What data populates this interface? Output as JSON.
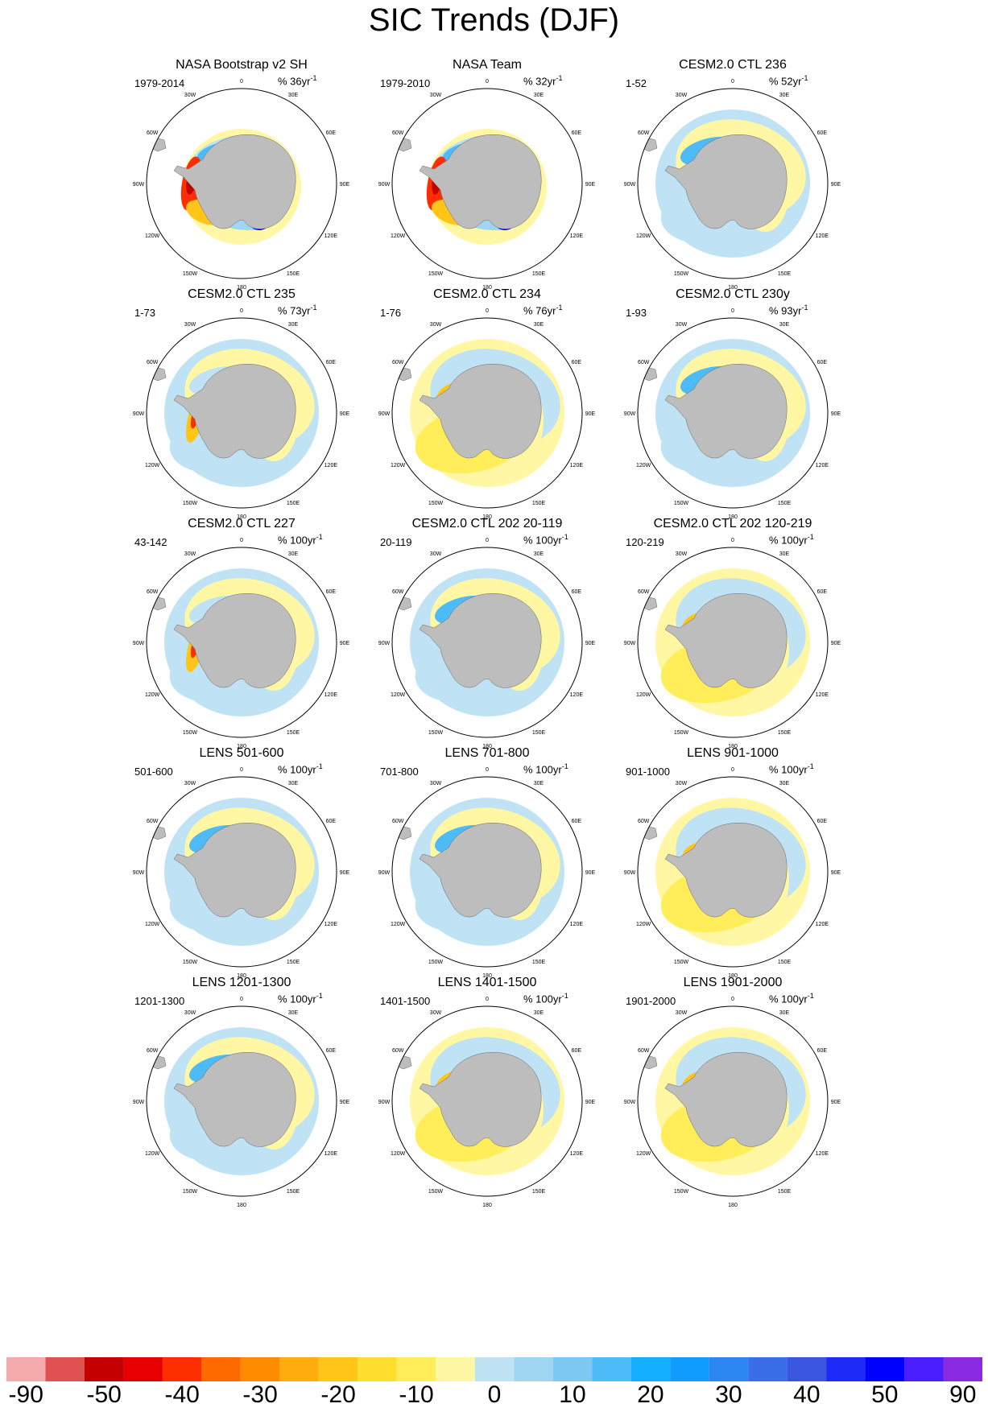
{
  "title": "SIC Trends (DJF)",
  "lon_labels": [
    "0",
    "30E",
    "60E",
    "90E",
    "120E",
    "150E",
    "180",
    "150W",
    "120W",
    "90W",
    "60W",
    "30W"
  ],
  "colors": {
    "land": "#bdbdbd",
    "ocean": "#ffffff",
    "outline": "#000000"
  },
  "chart_data": {
    "type": "heatmap",
    "projection": "south-polar-stereographic",
    "variable": "sea ice concentration trend",
    "unit_label": "%",
    "colorbar": {
      "tick_labels": [
        "-90",
        "-50",
        "-40",
        "-30",
        "-20",
        "-10",
        "0",
        "10",
        "20",
        "30",
        "40",
        "50",
        "90"
      ],
      "colors": [
        "#f4aaaa",
        "#e05252",
        "#c40000",
        "#e60000",
        "#ff2e00",
        "#ff6a00",
        "#ff8c00",
        "#ffad0d",
        "#ffc619",
        "#ffde2e",
        "#ffee59",
        "#fff7a3",
        "#bfe3f5",
        "#a0d6f2",
        "#7cc8f2",
        "#4dbbf7",
        "#13aefd",
        "#109bff",
        "#2d86f2",
        "#3a6ee8",
        "#3a56e0",
        "#1e2af5",
        "#0000ff",
        "#4b1eff",
        "#8a2be2"
      ]
    },
    "panels": [
      {
        "title": "NASA Bootstrap v2 SH",
        "period": "1979-2014",
        "trend_scale": "36",
        "unit_suffix": "yr",
        "unit_exp": "-1",
        "pattern": "obs"
      },
      {
        "title": "NASA Team",
        "period": "1979-2010",
        "trend_scale": "32",
        "unit_suffix": "yr",
        "unit_exp": "-1",
        "pattern": "obs"
      },
      {
        "title": "CESM2.0 CTL 236",
        "period": "1-52",
        "trend_scale": "52",
        "unit_suffix": "yr",
        "unit_exp": "-1",
        "pattern": "model-blue"
      },
      {
        "title": "CESM2.0 CTL 235",
        "period": "1-73",
        "trend_scale": "73",
        "unit_suffix": "yr",
        "unit_exp": "-1",
        "pattern": "model-mixed-red"
      },
      {
        "title": "CESM2.0 CTL 234",
        "period": "1-76",
        "trend_scale": "76",
        "unit_suffix": "yr",
        "unit_exp": "-1",
        "pattern": "model-yellow"
      },
      {
        "title": "CESM2.0 CTL 230y",
        "period": "1-93",
        "trend_scale": "93",
        "unit_suffix": "yr",
        "unit_exp": "-1",
        "pattern": "model-blue"
      },
      {
        "title": "CESM2.0 CTL 227",
        "period": "43-142",
        "trend_scale": "100",
        "unit_suffix": "yr",
        "unit_exp": "-1",
        "pattern": "model-mixed-red"
      },
      {
        "title": "CESM2.0 CTL 202 20-119",
        "period": "20-119",
        "trend_scale": "100",
        "unit_suffix": "yr",
        "unit_exp": "-1",
        "pattern": "model-blue"
      },
      {
        "title": "CESM2.0 CTL 202 120-219",
        "period": "120-219",
        "trend_scale": "100",
        "unit_suffix": "yr",
        "unit_exp": "-1",
        "pattern": "model-yellow"
      },
      {
        "title": "LENS 501-600",
        "period": "501-600",
        "trend_scale": "100",
        "unit_suffix": "yr",
        "unit_exp": "-1",
        "pattern": "model-blue"
      },
      {
        "title": "LENS 701-800",
        "period": "701-800",
        "trend_scale": "100",
        "unit_suffix": "yr",
        "unit_exp": "-1",
        "pattern": "model-blue"
      },
      {
        "title": "LENS 901-1000",
        "period": "901-1000",
        "trend_scale": "100",
        "unit_suffix": "yr",
        "unit_exp": "-1",
        "pattern": "model-yellow"
      },
      {
        "title": "LENS 1201-1300",
        "period": "1201-1300",
        "trend_scale": "100",
        "unit_suffix": "yr",
        "unit_exp": "-1",
        "pattern": "model-blue"
      },
      {
        "title": "LENS 1401-1500",
        "period": "1401-1500",
        "trend_scale": "100",
        "unit_suffix": "yr",
        "unit_exp": "-1",
        "pattern": "model-yellow"
      },
      {
        "title": "LENS 1901-2000",
        "period": "1901-2000",
        "trend_scale": "100",
        "unit_suffix": "yr",
        "unit_exp": "-1",
        "pattern": "model-yellow"
      }
    ]
  }
}
